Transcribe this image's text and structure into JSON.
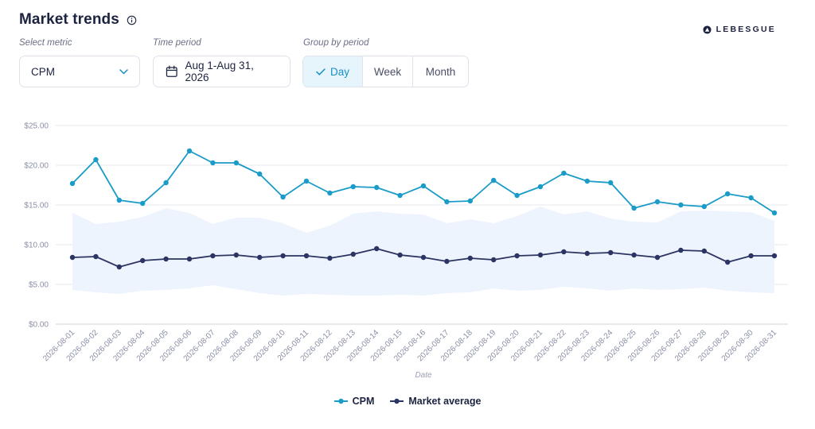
{
  "header": {
    "title": "Market trends",
    "info_icon": "info-circle-icon"
  },
  "brand": {
    "name": "LEBESGUE",
    "icon": "brand-mark-icon"
  },
  "controls": {
    "metric": {
      "label": "Select metric",
      "value": "CPM",
      "icon": "chevron-down-icon"
    },
    "period": {
      "label": "Time period",
      "value": "Aug 1-Aug 31, 2026",
      "icon": "calendar-icon"
    },
    "group": {
      "label": "Group by period",
      "options": [
        "Day",
        "Week",
        "Month"
      ],
      "selected": "Day",
      "selected_icon": "check-icon"
    }
  },
  "colors": {
    "cpm": "#1a9bc8",
    "market": "#2b3462",
    "band": "#eef4fd",
    "grid": "#e7e9ef",
    "selected_bg": "#e6f4fb"
  },
  "chart_data": {
    "type": "line",
    "x": [
      "2026-08-01",
      "2026-08-02",
      "2026-08-03",
      "2026-08-04",
      "2026-08-05",
      "2026-08-06",
      "2026-08-07",
      "2026-08-08",
      "2026-08-09",
      "2026-08-10",
      "2026-08-11",
      "2026-08-12",
      "2026-08-13",
      "2026-08-14",
      "2026-08-15",
      "2026-08-16",
      "2026-08-17",
      "2026-08-18",
      "2026-08-19",
      "2026-08-20",
      "2026-08-21",
      "2026-08-22",
      "2026-08-23",
      "2026-08-24",
      "2026-08-25",
      "2026-08-26",
      "2026-08-27",
      "2026-08-28",
      "2026-08-29",
      "2026-08-30",
      "2026-08-31"
    ],
    "series": [
      {
        "name": "CPM",
        "values": [
          17.7,
          20.7,
          15.6,
          15.2,
          17.8,
          21.8,
          20.3,
          20.3,
          18.9,
          16.0,
          18.0,
          16.5,
          17.3,
          17.2,
          16.2,
          17.4,
          15.4,
          15.5,
          18.1,
          16.2,
          17.3,
          19.0,
          18.0,
          17.8,
          14.6,
          15.4,
          15.0,
          14.8,
          16.4,
          15.9,
          14.0
        ]
      },
      {
        "name": "Market average",
        "values": [
          8.4,
          8.5,
          7.2,
          8.0,
          8.2,
          8.2,
          8.6,
          8.7,
          8.4,
          8.6,
          8.6,
          8.3,
          8.8,
          9.5,
          8.7,
          8.4,
          7.9,
          8.3,
          8.1,
          8.6,
          8.7,
          9.1,
          8.9,
          9.0,
          8.7,
          8.4,
          9.3,
          9.2,
          7.8,
          8.6,
          8.6
        ]
      }
    ],
    "band": {
      "upper": [
        14.0,
        12.6,
        12.9,
        13.5,
        14.6,
        14.0,
        12.6,
        13.4,
        13.4,
        12.7,
        11.5,
        12.4,
        13.9,
        14.2,
        13.9,
        13.8,
        12.7,
        13.2,
        12.7,
        13.6,
        14.8,
        13.8,
        14.2,
        13.3,
        12.9,
        12.8,
        14.2,
        14.3,
        14.2,
        14.1,
        13.0
      ],
      "lower": [
        4.3,
        4.0,
        3.8,
        4.2,
        4.3,
        4.5,
        4.9,
        4.4,
        3.9,
        3.6,
        3.8,
        3.7,
        3.6,
        3.6,
        3.7,
        3.6,
        3.9,
        4.0,
        4.5,
        4.2,
        4.3,
        4.7,
        4.5,
        4.2,
        4.5,
        4.3,
        4.4,
        4.6,
        4.2,
        4.0,
        3.9
      ]
    },
    "y_ticks": [
      "$0.00",
      "$5.00",
      "$10.00",
      "$15.00",
      "$20.00",
      "$25.00"
    ],
    "ylim": [
      0,
      25
    ],
    "xlabel": "Date",
    "ylabel": "",
    "grid": true,
    "legend_position": "bottom-center"
  }
}
